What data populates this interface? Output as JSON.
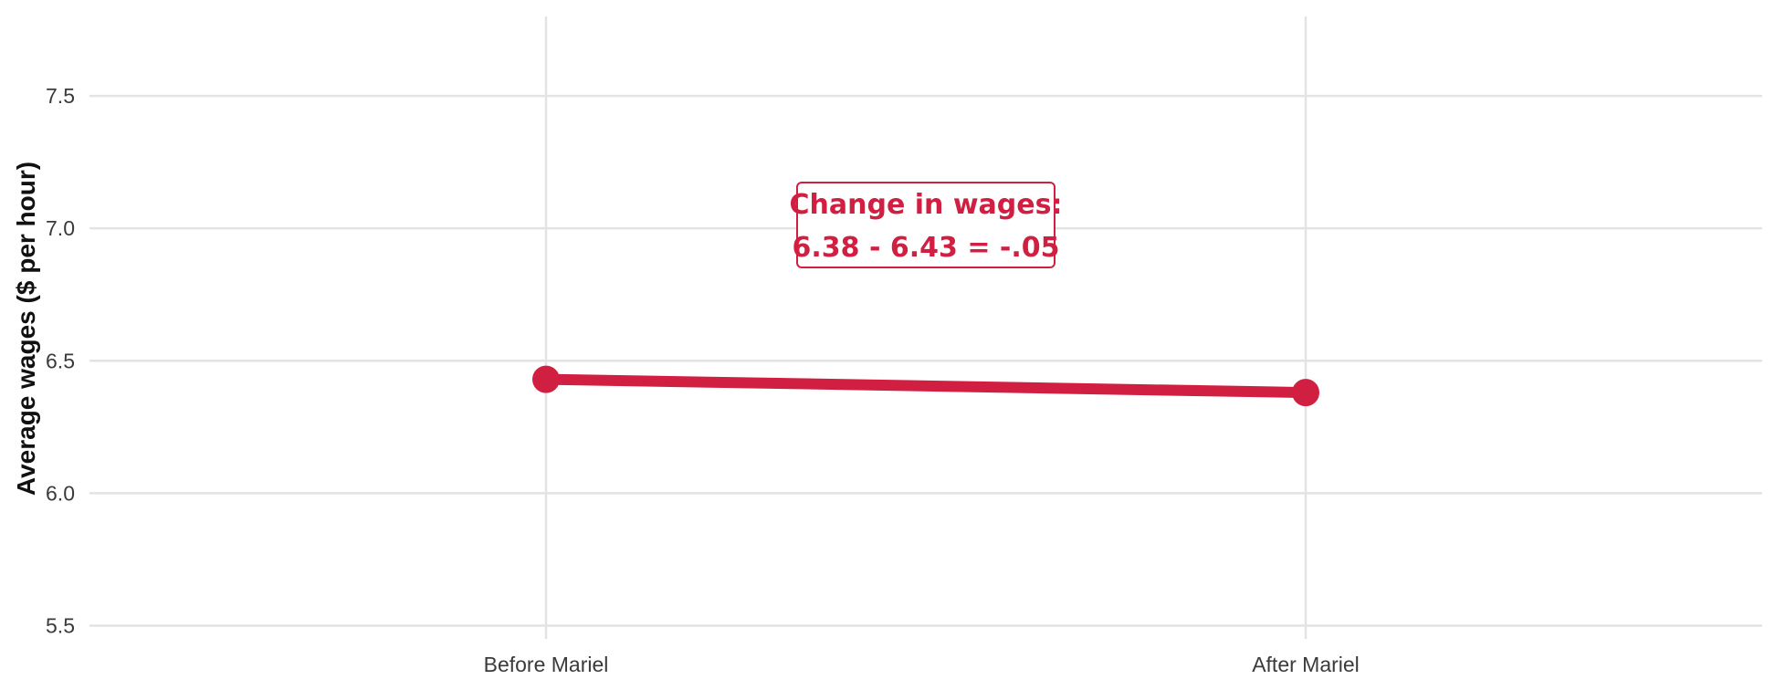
{
  "chart_data": {
    "type": "line",
    "categories": [
      "Before Mariel",
      "After Mariel"
    ],
    "series": [
      {
        "values": [
          6.43,
          6.38
        ]
      }
    ],
    "ylabel": "Average wages ($ per hour)",
    "xlabel": "",
    "title": "",
    "ylim": [
      5.45,
      7.8
    ],
    "yticks": [
      5.5,
      6.0,
      6.5,
      7.0,
      7.5
    ],
    "ytick_labels": [
      "5.5",
      "6.0",
      "6.5",
      "7.0",
      "7.5"
    ],
    "grid": true,
    "legend": "none",
    "series_color": "#d11f41",
    "annotation": {
      "lines": [
        "Change in wages:",
        "6.38 - 6.43 = -.05"
      ],
      "color": "#d11f41"
    }
  }
}
